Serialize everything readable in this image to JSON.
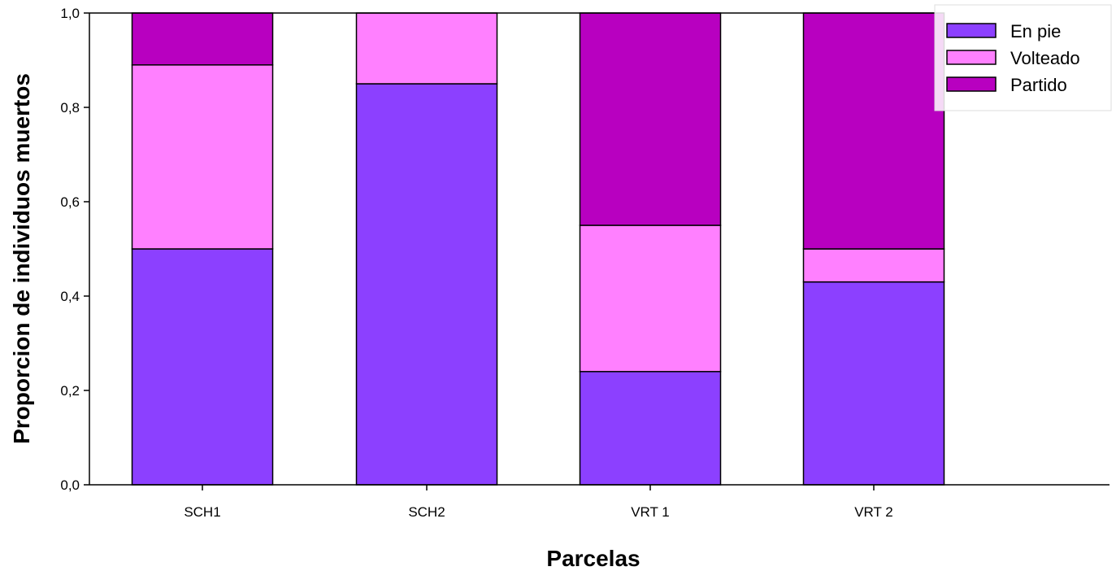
{
  "chart_data": {
    "type": "bar",
    "stacked": true,
    "categories": [
      "SCH1",
      "SCH2",
      "VRT 1",
      "VRT 2"
    ],
    "series": [
      {
        "name": "En pie",
        "color": "#8c40ff",
        "values": [
          0.5,
          0.85,
          0.24,
          0.43
        ]
      },
      {
        "name": "Volteado",
        "color": "#ff80ff",
        "values": [
          0.39,
          0.15,
          0.31,
          0.07
        ]
      },
      {
        "name": "Partido",
        "color": "#b800c0",
        "values": [
          0.11,
          0.0,
          0.45,
          0.5
        ]
      }
    ],
    "xlabel": "Parcelas",
    "ylabel": "Proporcion de individuos muertos",
    "ylim": [
      0,
      1.0
    ],
    "yticks": [
      0.0,
      0.2,
      0.4,
      0.6,
      0.8,
      1.0
    ],
    "ytick_labels": [
      "0,0",
      "0,2",
      "0,4",
      "0,6",
      "0,8",
      "1,0"
    ],
    "grid": false,
    "legend_position": "top-right"
  }
}
